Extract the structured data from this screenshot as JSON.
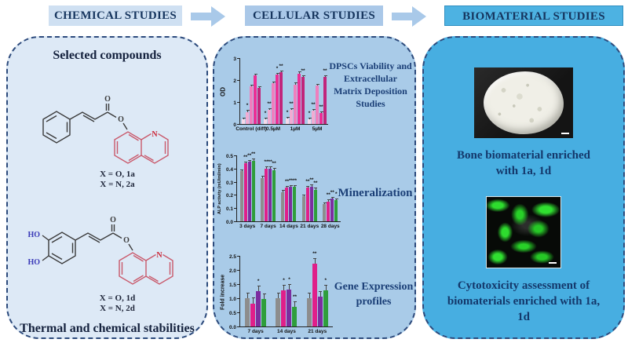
{
  "header": {
    "chemical": "CHEMICAL STUDIES",
    "cellular": "CELLULAR STUDIES",
    "biomaterial": "BIOMATERIAL STUDIES"
  },
  "chemical_panel": {
    "title": "Selected compounds",
    "compound1": {
      "carbonyl_o": "O",
      "ester_o": "O",
      "ring_n": "N",
      "label_line1": "X = O, 1a",
      "label_line2": "X = N, 2a"
    },
    "compound2": {
      "ho_top": "HO",
      "ho_bottom": "HO",
      "carbonyl_o": "O",
      "ester_o": "O",
      "ring_n": "N",
      "label_line1": "X = O, 1d",
      "label_line2": "X = N, 2d"
    },
    "footer": "Thermal and chemical stabilities"
  },
  "cellular_panel": {
    "chart1_label": "DPSCs Viability and Extracellular Matrix Deposition Studies",
    "chart2_label": "Mineralization",
    "chart3_label": "Gene Expression profiles"
  },
  "biomaterial_panel": {
    "caption1": "Bone biomaterial enriched with 1a, 1d",
    "caption2": "Cytotoxicity assessment of biomaterials enriched with 1a, 1d"
  },
  "colors": {
    "panel_chemical_bg": "#dde9f6",
    "panel_cellular_bg": "#a9cbe8",
    "panel_biomaterial_bg": "#47aee1",
    "header1_bg": "#cfe0f2",
    "header2_bg": "#aac8e8",
    "header3_bg": "#4db2e2",
    "arrow": "#a9c9e9",
    "navy_text": "#16355e",
    "quinoline_red": "#c9596b",
    "n_red": "#cc2233",
    "ho_blue": "#3a3ab8",
    "fluorescence_green": "#2edc2e"
  },
  "chart_data": [
    {
      "type": "bar",
      "title": "DPSCs viability / ECM deposition",
      "ylabel": "OD",
      "xlabel": "",
      "ylim": [
        0,
        3
      ],
      "yticks": [
        0,
        1,
        2,
        3
      ],
      "ytick_labels": [
        "0",
        "1",
        "2",
        "3"
      ],
      "err": 0.08,
      "legend_position": "none",
      "grid": false,
      "categories": [
        "Control (diff)",
        "0.5µM",
        "1µM",
        "5µM"
      ],
      "series": [
        {
          "name": "pink-lightest",
          "color": "#f6d9ea",
          "values": [
            0.2,
            0.2,
            0.25,
            0.2
          ],
          "sig": [
            "",
            "*",
            "*",
            "*"
          ]
        },
        {
          "name": "pink-light",
          "color": "#f2abd2",
          "values": [
            0.55,
            0.65,
            0.65,
            0.6
          ],
          "sig": [
            "*",
            "**",
            "**",
            "**"
          ]
        },
        {
          "name": "pink-medium",
          "color": "#ef7fbe",
          "values": [
            1.7,
            1.85,
            1.8,
            1.75
          ],
          "sig": [
            "",
            "",
            "",
            ""
          ]
        },
        {
          "name": "magenta-bright",
          "color": "#ec2e95",
          "values": [
            2.2,
            2.25,
            2.3,
            0.5
          ],
          "sig": [
            "",
            "*",
            "",
            "**"
          ]
        },
        {
          "name": "magenta-dark",
          "color": "#c1257b",
          "values": [
            1.65,
            2.35,
            2.15,
            2.15
          ],
          "sig": [
            "",
            "**",
            "**",
            "**"
          ]
        }
      ]
    },
    {
      "type": "bar",
      "title": "Mineralization",
      "ylabel": "ALP activity (mU/ml/min)",
      "xlabel": "",
      "ylim": [
        0,
        0.5
      ],
      "yticks": [
        0,
        0.1,
        0.2,
        0.3,
        0.4,
        0.5
      ],
      "ytick_labels": [
        "0.0",
        "0.1",
        "0.2",
        "0.3",
        "0.4",
        "0.5"
      ],
      "err": 0.015,
      "legend_position": "none",
      "grid": false,
      "categories": [
        "3 days",
        "7 days",
        "14 days",
        "21 days",
        "28 days"
      ],
      "series": [
        {
          "name": "control-gray",
          "color": "#8d8d8d",
          "values": [
            0.38,
            0.33,
            0.22,
            0.19,
            0.13
          ],
          "sig": [
            "",
            "",
            "",
            "",
            ""
          ]
        },
        {
          "name": "magenta",
          "color": "#e01f8a",
          "values": [
            0.44,
            0.4,
            0.255,
            0.255,
            0.15
          ],
          "sig": [
            "**",
            "**",
            "**",
            "**",
            "**"
          ]
        },
        {
          "name": "purple",
          "color": "#7c2da0",
          "values": [
            0.45,
            0.4,
            0.26,
            0.265,
            0.17
          ],
          "sig": [
            "**",
            "**",
            "**",
            "**",
            "**"
          ]
        },
        {
          "name": "green",
          "color": "#2f9e3c",
          "values": [
            0.46,
            0.39,
            0.26,
            0.24,
            0.16
          ],
          "sig": [
            "**",
            "**",
            "**",
            "**",
            "*"
          ]
        }
      ]
    },
    {
      "type": "bar",
      "title": "Gene Expression profiles",
      "ylabel": "Fold increase",
      "xlabel": "",
      "ylim": [
        0,
        2.5
      ],
      "yticks": [
        0,
        0.5,
        1.0,
        1.5,
        2.0,
        2.5
      ],
      "ytick_labels": [
        "0.0",
        "0.5",
        "1.0",
        "1.5",
        "2.0",
        "2.5"
      ],
      "err": 0.2,
      "legend_position": "none",
      "grid": false,
      "categories": [
        "7 days",
        "14 days",
        "21 days"
      ],
      "series": [
        {
          "name": "control-gray",
          "color": "#8d8d8d",
          "values": [
            1.0,
            1.0,
            1.0
          ],
          "sig": [
            "",
            "",
            ""
          ]
        },
        {
          "name": "magenta",
          "color": "#e01f8a",
          "values": [
            0.82,
            1.27,
            2.23
          ],
          "sig": [
            "",
            "*",
            "**"
          ]
        },
        {
          "name": "purple",
          "color": "#7c2da0",
          "values": [
            1.25,
            1.31,
            1.05
          ],
          "sig": [
            "*",
            "*",
            ""
          ]
        },
        {
          "name": "green",
          "color": "#2f9e3c",
          "values": [
            0.97,
            0.7,
            1.28
          ],
          "sig": [
            "",
            "**",
            "*"
          ]
        }
      ]
    }
  ]
}
